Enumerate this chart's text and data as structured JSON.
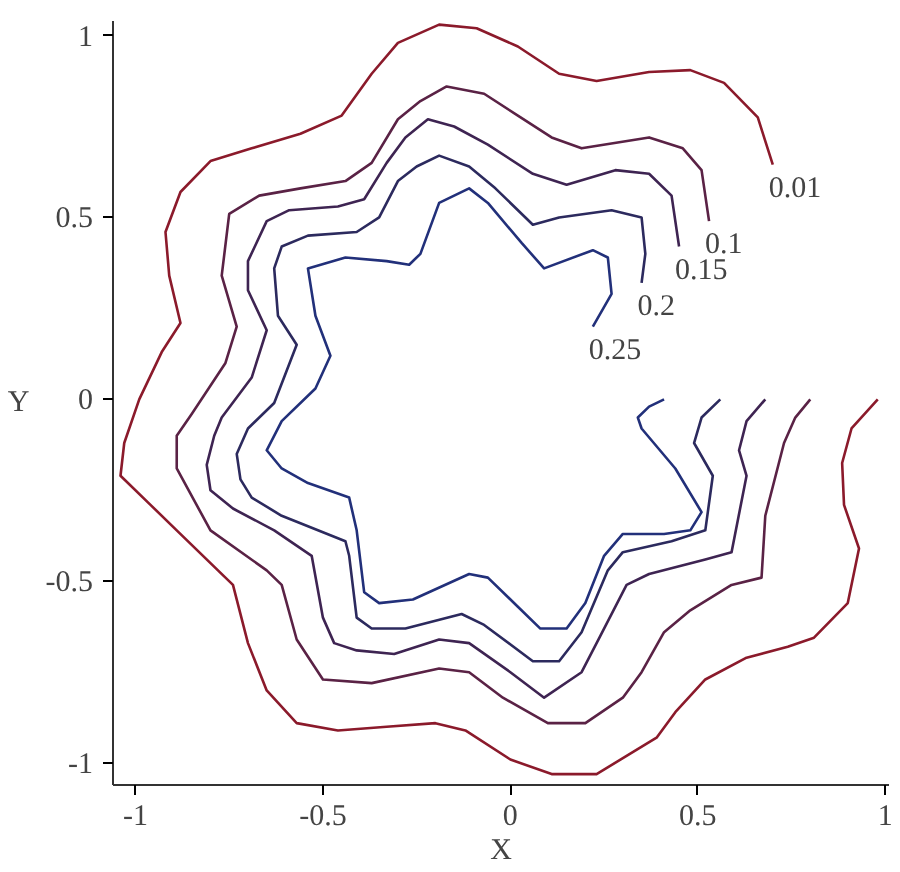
{
  "chart_data": {
    "type": "line",
    "xlabel": "X",
    "ylabel": "Y",
    "xlim": [
      -1.06,
      1.01
    ],
    "ylim": [
      -1.06,
      1.04
    ],
    "xticks": [
      -1,
      -0.5,
      0,
      0.5,
      1
    ],
    "yticks": [
      -1,
      -0.5,
      0,
      0.5,
      1
    ],
    "grid": false,
    "legend": false,
    "marker": "none",
    "line_style": "solid",
    "series": [
      {
        "name": "0.01",
        "color": "#8b1a2b",
        "x": [
          0.98,
          0.91,
          0.885,
          0.89,
          0.93,
          0.9,
          0.81,
          0.74,
          0.63,
          0.52,
          0.44,
          0.39,
          0.31,
          0.23,
          0.11,
          0,
          -0.12,
          -0.2,
          -0.33,
          -0.46,
          -0.57,
          -0.65,
          -0.7,
          -0.74,
          -0.78,
          -0.89,
          -0.96,
          -1.04,
          -1.03,
          -0.99,
          -0.93,
          -0.88,
          -0.91,
          -0.92,
          -0.88,
          -0.8,
          -0.69,
          -0.56,
          -0.45,
          -0.37,
          -0.3,
          -0.19,
          -0.09,
          0.02,
          0.13,
          0.23,
          0.37,
          0.48,
          0.57,
          0.66,
          0.7
        ],
        "values": [
          0,
          -0.08,
          -0.175,
          -0.29,
          -0.41,
          -0.56,
          -0.655,
          -0.68,
          -0.71,
          -0.77,
          -0.86,
          -0.93,
          -0.98,
          -1.03,
          -1.03,
          -0.99,
          -0.91,
          -0.89,
          -0.9,
          -0.91,
          -0.89,
          -0.8,
          -0.67,
          -0.51,
          -0.47,
          -0.36,
          -0.29,
          -0.21,
          -0.12,
          0,
          0.13,
          0.21,
          0.34,
          0.46,
          0.57,
          0.655,
          0.69,
          0.73,
          0.78,
          0.895,
          0.98,
          1.03,
          1.02,
          0.97,
          0.895,
          0.875,
          0.9,
          0.905,
          0.87,
          0.775,
          0.645
        ]
      },
      {
        "name": "0.1",
        "color": "#5a2245",
        "x": [
          0.8,
          0.76,
          0.73,
          0.68,
          0.67,
          0.59,
          0.48,
          0.41,
          0.35,
          0.3,
          0.2,
          0.1,
          -0.02,
          -0.11,
          -0.19,
          -0.37,
          -0.5,
          -0.57,
          -0.61,
          -0.65,
          -0.8,
          -0.89,
          -0.89,
          -0.85,
          -0.76,
          -0.73,
          -0.77,
          -0.75,
          -0.67,
          -0.56,
          -0.44,
          -0.37,
          -0.3,
          -0.24,
          -0.17,
          -0.07,
          0.02,
          0.11,
          0.19,
          0.37,
          0.46,
          0.51,
          0.53
        ],
        "values": [
          0,
          -0.05,
          -0.12,
          -0.32,
          -0.49,
          -0.51,
          -0.58,
          -0.64,
          -0.75,
          -0.82,
          -0.89,
          -0.89,
          -0.82,
          -0.75,
          -0.74,
          -0.78,
          -0.77,
          -0.66,
          -0.51,
          -0.47,
          -0.36,
          -0.19,
          -0.1,
          -0.04,
          0.1,
          0.2,
          0.34,
          0.51,
          0.56,
          0.58,
          0.6,
          0.65,
          0.77,
          0.82,
          0.86,
          0.84,
          0.78,
          0.72,
          0.69,
          0.72,
          0.69,
          0.63,
          0.49
        ]
      },
      {
        "name": "0.15",
        "color": "#3e2452",
        "x": [
          0.68,
          0.63,
          0.61,
          0.63,
          0.59,
          0.52,
          0.37,
          0.31,
          0.24,
          0.19,
          0.09,
          0,
          -0.11,
          -0.19,
          -0.31,
          -0.41,
          -0.47,
          -0.5,
          -0.53,
          -0.63,
          -0.74,
          -0.8,
          -0.81,
          -0.79,
          -0.77,
          -0.69,
          -0.65,
          -0.7,
          -0.7,
          -0.65,
          -0.59,
          -0.46,
          -0.39,
          -0.33,
          -0.28,
          -0.22,
          -0.15,
          -0.06,
          0.06,
          0.15,
          0.28,
          0.37,
          0.43,
          0.45
        ],
        "values": [
          0,
          -0.06,
          -0.14,
          -0.21,
          -0.42,
          -0.44,
          -0.48,
          -0.51,
          -0.65,
          -0.75,
          -0.82,
          -0.75,
          -0.67,
          -0.66,
          -0.7,
          -0.69,
          -0.67,
          -0.6,
          -0.43,
          -0.36,
          -0.3,
          -0.25,
          -0.18,
          -0.1,
          -0.05,
          0.06,
          0.19,
          0.3,
          0.38,
          0.49,
          0.52,
          0.53,
          0.55,
          0.65,
          0.72,
          0.77,
          0.75,
          0.7,
          0.62,
          0.59,
          0.63,
          0.62,
          0.56,
          0.42
        ]
      },
      {
        "name": "0.2",
        "color": "#2c2a5e",
        "x": [
          0.56,
          0.51,
          0.49,
          0.54,
          0.52,
          0.43,
          0.3,
          0.26,
          0.19,
          0.13,
          0.06,
          -0.07,
          -0.13,
          -0.28,
          -0.37,
          -0.41,
          -0.43,
          -0.44,
          -0.61,
          -0.69,
          -0.72,
          -0.73,
          -0.7,
          -0.63,
          -0.57,
          -0.62,
          -0.63,
          -0.61,
          -0.54,
          -0.41,
          -0.35,
          -0.3,
          -0.25,
          -0.19,
          -0.11,
          -0.04,
          0.06,
          0.13,
          0.27,
          0.35,
          0.36,
          0.35
        ],
        "values": [
          0,
          -0.05,
          -0.12,
          -0.21,
          -0.36,
          -0.39,
          -0.42,
          -0.47,
          -0.64,
          -0.72,
          -0.72,
          -0.62,
          -0.59,
          -0.63,
          -0.63,
          -0.6,
          -0.43,
          -0.39,
          -0.32,
          -0.27,
          -0.22,
          -0.15,
          -0.08,
          -0.01,
          0.15,
          0.23,
          0.36,
          0.42,
          0.45,
          0.46,
          0.5,
          0.6,
          0.64,
          0.67,
          0.64,
          0.58,
          0.48,
          0.5,
          0.52,
          0.5,
          0.4,
          0.32
        ]
      },
      {
        "name": "0.25",
        "color": "#22307a",
        "x": [
          0.41,
          0.37,
          0.34,
          0.35,
          0.44,
          0.51,
          0.48,
          0.41,
          0.3,
          0.25,
          0.2,
          0.15,
          0.08,
          0.02,
          -0.06,
          -0.11,
          -0.26,
          -0.35,
          -0.39,
          -0.41,
          -0.43,
          -0.54,
          -0.61,
          -0.65,
          -0.61,
          -0.52,
          -0.48,
          -0.52,
          -0.54,
          -0.44,
          -0.33,
          -0.27,
          -0.24,
          -0.19,
          -0.11,
          -0.06,
          0.03,
          0.09,
          0.22,
          0.26,
          0.27,
          0.22
        ],
        "values": [
          0,
          -0.02,
          -0.05,
          -0.08,
          -0.19,
          -0.31,
          -0.36,
          -0.37,
          -0.37,
          -0.43,
          -0.56,
          -0.63,
          -0.63,
          -0.57,
          -0.49,
          -0.48,
          -0.55,
          -0.56,
          -0.53,
          -0.36,
          -0.27,
          -0.23,
          -0.19,
          -0.14,
          -0.06,
          0.03,
          0.12,
          0.23,
          0.36,
          0.39,
          0.38,
          0.37,
          0.4,
          0.54,
          0.58,
          0.54,
          0.43,
          0.36,
          0.41,
          0.39,
          0.29,
          0.2
        ]
      }
    ]
  }
}
